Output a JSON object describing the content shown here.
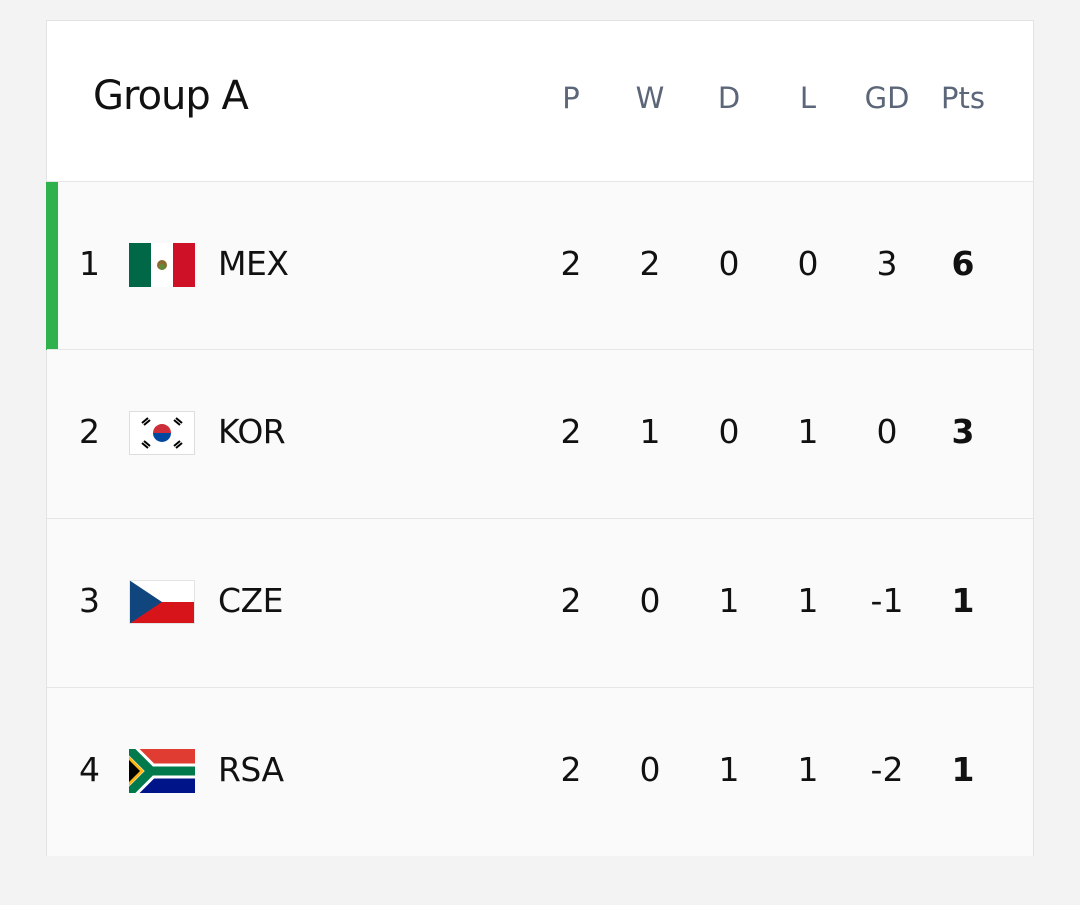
{
  "header": {
    "title": "Group A",
    "columns": [
      "P",
      "W",
      "D",
      "L",
      "GD",
      "Pts"
    ]
  },
  "table": {
    "rows": [
      {
        "rank": 1,
        "team": "MEX",
        "stats": [
          2,
          2,
          0,
          0,
          3,
          6
        ]
      },
      {
        "rank": 2,
        "team": "KOR",
        "stats": [
          2,
          1,
          0,
          1,
          0,
          3
        ]
      },
      {
        "rank": 3,
        "team": "CZE",
        "stats": [
          2,
          0,
          1,
          1,
          -1,
          1
        ]
      },
      {
        "rank": 4,
        "team": "RSA",
        "stats": [
          2,
          0,
          1,
          1,
          -2,
          1
        ]
      }
    ]
  }
}
